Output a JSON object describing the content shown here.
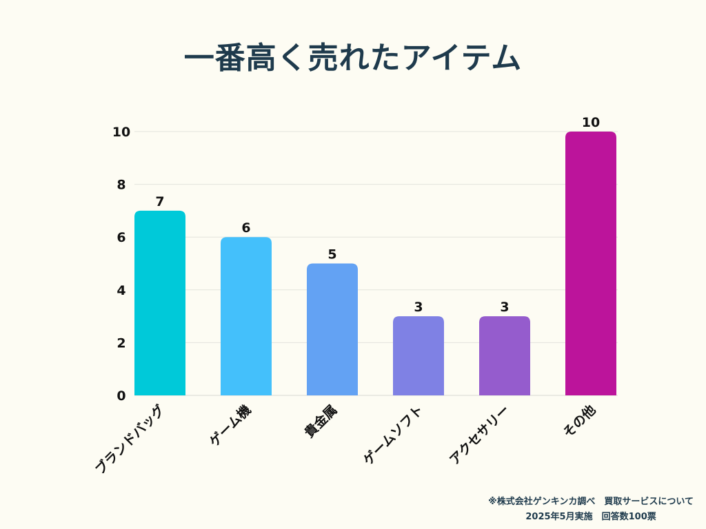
{
  "chart_data": {
    "type": "bar",
    "title": "一番高く売れたアイテム",
    "categories": [
      "ブランドバッグ",
      "ゲーム機",
      "貴金属",
      "ゲームソフト",
      "アクセサリー",
      "その他"
    ],
    "values": [
      7,
      6,
      5,
      3,
      3,
      10
    ],
    "colors": [
      "#00c9d9",
      "#44c0fb",
      "#63a2f3",
      "#7f81e4",
      "#955ccd",
      "#bc149b"
    ],
    "ylim": [
      0,
      10
    ],
    "yticks": [
      0,
      2,
      4,
      6,
      8,
      10
    ],
    "grid": true,
    "xlabel": "",
    "ylabel": ""
  },
  "footnote": {
    "line1": "※株式会社ゲンキンカ調べ　買取サービスについて",
    "line2": "2025年5月実施　回答数100票"
  }
}
